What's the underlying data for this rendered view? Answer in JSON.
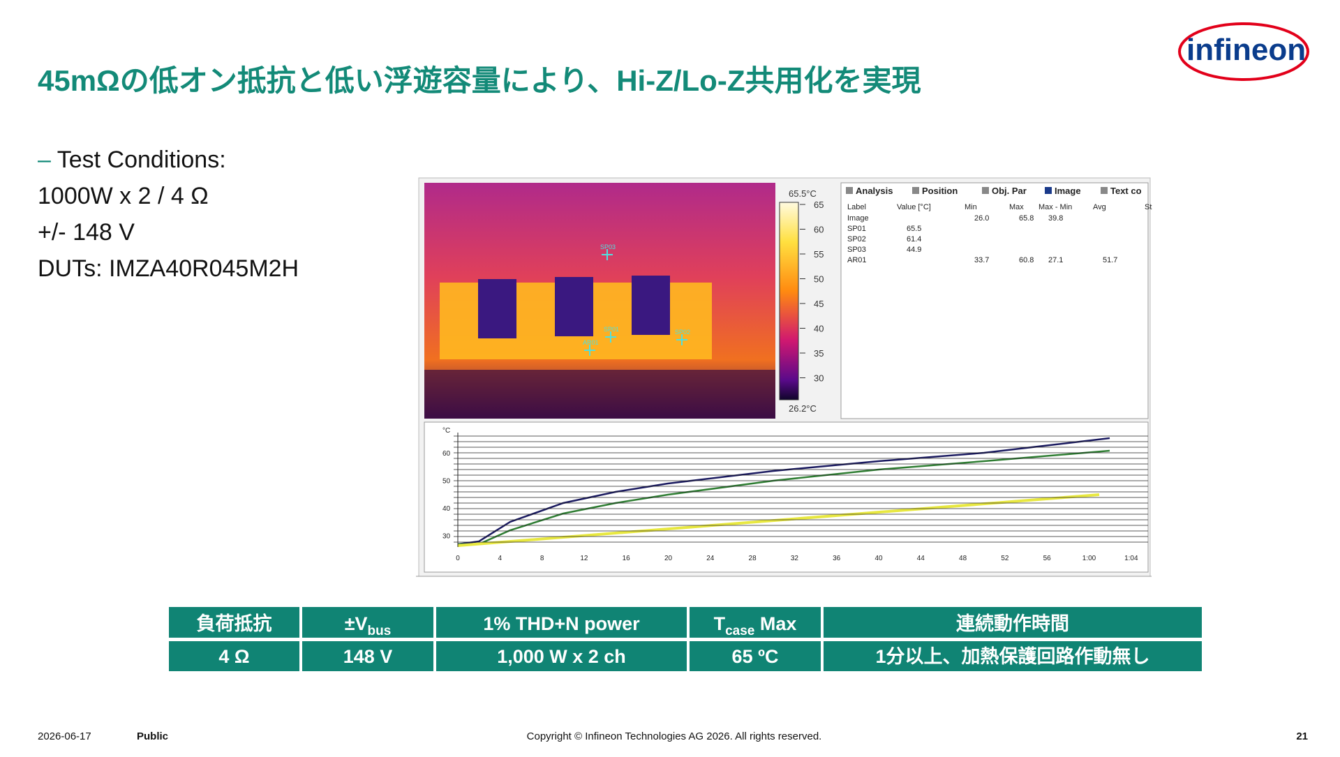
{
  "header": {
    "title": "45mΩの低オン抵抗と低い浮遊容量により、Hi-Z/Lo-Z共用化を実現",
    "logo": "infineon"
  },
  "conditions": {
    "heading": "Test Conditions:",
    "lines": [
      "1000W x 2 / 4 Ω",
      "+/- 148 V",
      "DUTs: IMZA40R045M2H"
    ]
  },
  "thermal": {
    "max_label": "65.5°C",
    "min_label": "26.2°C",
    "scale": [
      "65",
      "60",
      "55",
      "50",
      "45",
      "40",
      "35",
      "30"
    ],
    "spots": [
      "SP03",
      "SP01",
      "SP02",
      "AR01"
    ],
    "tabs": [
      "Analysis",
      "Position",
      "Obj. Par",
      "Image",
      "Text co"
    ],
    "analysis": {
      "columns": [
        "Label",
        "Value [°C]",
        "Min",
        "Max",
        "Max - Min",
        "Avg",
        "St"
      ],
      "rows": [
        [
          "Image",
          "",
          "26.0",
          "65.8",
          "39.8",
          ""
        ],
        [
          "SP01",
          "65.5",
          "",
          "",
          "",
          ""
        ],
        [
          "SP02",
          "61.4",
          "",
          "",
          "",
          ""
        ],
        [
          "SP03",
          "44.9",
          "",
          "",
          "",
          ""
        ],
        [
          "AR01",
          "",
          "33.7",
          "60.8",
          "27.1",
          "51.7"
        ]
      ]
    }
  },
  "trend": {
    "unit": "°C",
    "yticks": [
      "60",
      "50",
      "40",
      "30"
    ],
    "xticks": [
      "0",
      "4",
      "8",
      "12",
      "16",
      "20",
      "24",
      "28",
      "32",
      "36",
      "40",
      "44",
      "48",
      "52",
      "56",
      "1:00",
      "1:04"
    ]
  },
  "table": {
    "headers": [
      {
        "main": "負荷抵抗"
      },
      {
        "main": "±V",
        "sub": "bus"
      },
      {
        "main": "1% THD+N power"
      },
      {
        "main": "T",
        "sub": "case",
        "rest": " Max"
      },
      {
        "main": "連続動作時間"
      }
    ],
    "row": [
      "4 Ω",
      "148 V",
      "1,000 W  x 2 ch",
      "65 ºC",
      "1分以上、加熱保護回路作動無し"
    ]
  },
  "footer": {
    "date": "2026-06-17",
    "classification": "Public",
    "copyright": "Copyright © Infineon Technologies AG 2026. All rights reserved.",
    "page": "21"
  }
}
